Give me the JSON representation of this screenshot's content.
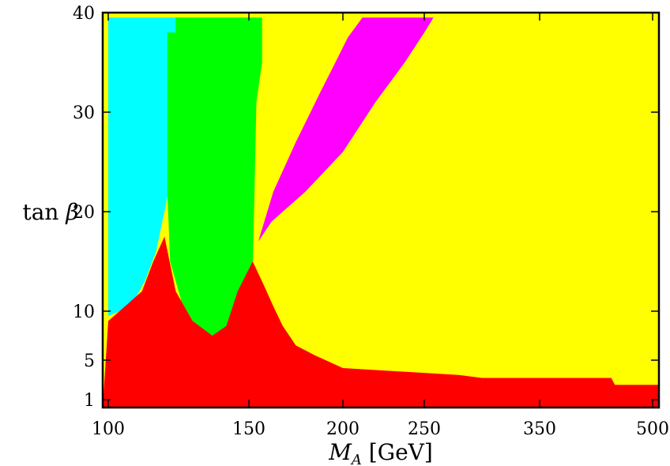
{
  "chart_data": {
    "type": "area",
    "title": "",
    "xlabel": "M_A [GeV]",
    "ylabel": "tan β",
    "xlim": [
      98,
      502
    ],
    "ylim": [
      0,
      40
    ],
    "x_ticks": [
      {
        "value": 100,
        "label": "100"
      },
      {
        "value": 150,
        "label": "150"
      },
      {
        "value": 200,
        "label": "200"
      },
      {
        "value": 250,
        "label": "250"
      },
      {
        "value": 350,
        "label": "350"
      },
      {
        "value": 500,
        "label": "500"
      }
    ],
    "y_ticks": [
      {
        "value": 1,
        "label": "1"
      },
      {
        "value": 5,
        "label": "5"
      },
      {
        "value": 10,
        "label": "10"
      },
      {
        "value": 20,
        "label": "20"
      },
      {
        "value": 30,
        "label": "30"
      },
      {
        "value": 40,
        "label": "40"
      }
    ],
    "grid": false,
    "legend": "none",
    "regions": [
      {
        "color": "#ffff00",
        "points": [
          [
            98,
            0
          ],
          [
            502,
            0
          ],
          [
            502,
            40
          ],
          [
            98,
            40
          ]
        ]
      },
      {
        "color": "#00ffff",
        "points": [
          [
            100,
            9.5
          ],
          [
            108,
            10.5
          ],
          [
            113,
            13
          ],
          [
            117,
            16
          ],
          [
            120,
            20
          ],
          [
            125,
            27
          ],
          [
            125,
            39.5
          ],
          [
            100,
            39.5
          ]
        ]
      },
      {
        "color": "#00ff00",
        "points": [
          [
            121,
            38
          ],
          [
            121,
            22
          ],
          [
            122,
            15
          ],
          [
            126,
            11
          ],
          [
            131,
            8.5
          ],
          [
            137,
            7.5
          ],
          [
            143,
            8
          ],
          [
            148,
            10.5
          ],
          [
            152,
            14
          ],
          [
            153,
            22
          ],
          [
            154,
            31
          ],
          [
            157,
            35
          ],
          [
            157,
            39.5
          ],
          [
            124,
            39.5
          ],
          [
            124,
            38
          ]
        ]
      },
      {
        "color": "#ff00ff",
        "points": [
          [
            155,
            17
          ],
          [
            163,
            22
          ],
          [
            175,
            27
          ],
          [
            188,
            32
          ],
          [
            196,
            35
          ],
          [
            203,
            37.5
          ],
          [
            212,
            39.5
          ],
          [
            258,
            39.5
          ],
          [
            250,
            38
          ],
          [
            238,
            35
          ],
          [
            220,
            31
          ],
          [
            200,
            26
          ],
          [
            180,
            22
          ],
          [
            162,
            19
          ]
        ]
      },
      {
        "color": "#ff0000",
        "points": [
          [
            98,
            0
          ],
          [
            502,
            0
          ],
          [
            502,
            2.5
          ],
          [
            450,
            2.5
          ],
          [
            445,
            3.2
          ],
          [
            300,
            3.2
          ],
          [
            280,
            3.5
          ],
          [
            200,
            4.2
          ],
          [
            185,
            5.5
          ],
          [
            175,
            6.5
          ],
          [
            168,
            8.5
          ],
          [
            163,
            10.5
          ],
          [
            157,
            13
          ],
          [
            152,
            15
          ],
          [
            146,
            12
          ],
          [
            142,
            8.5
          ],
          [
            137,
            7.5
          ],
          [
            130,
            9
          ],
          [
            124,
            12
          ],
          [
            120,
            17.5
          ],
          [
            116,
            15
          ],
          [
            112,
            12
          ],
          [
            104,
            10
          ],
          [
            100,
            9
          ]
        ]
      }
    ]
  }
}
